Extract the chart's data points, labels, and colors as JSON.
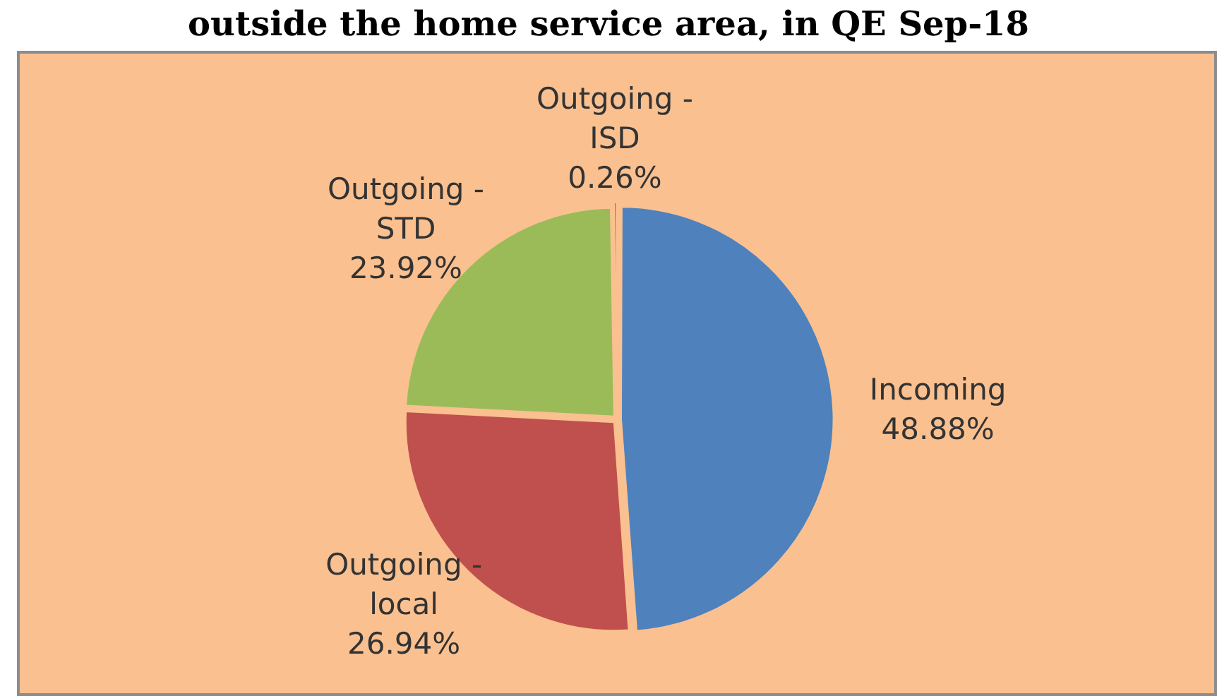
{
  "chart_data": {
    "type": "pie",
    "title": "outside the home service area, in QE Sep-18",
    "categories": [
      "Incoming",
      "Outgoing - local",
      "Outgoing - STD",
      "Outgoing - ISD"
    ],
    "values": [
      48.88,
      26.94,
      23.92,
      0.26
    ],
    "colors": [
      "#4f81bd",
      "#c0504d",
      "#9bbb59",
      "#8064a2"
    ],
    "value_labels": [
      "48.88%",
      "26.94%",
      "23.92%",
      "0.26%"
    ],
    "legend": false
  }
}
